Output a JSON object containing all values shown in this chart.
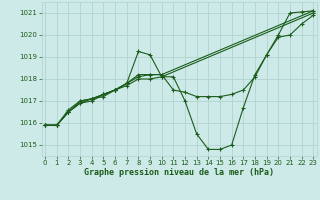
{
  "xlabel": "Graphe pression niveau de la mer (hPa)",
  "x_ticks": [
    0,
    1,
    2,
    3,
    4,
    5,
    6,
    7,
    8,
    9,
    10,
    11,
    12,
    13,
    14,
    15,
    16,
    17,
    18,
    19,
    20,
    21,
    22,
    23
  ],
  "ylim": [
    1014.5,
    1021.5
  ],
  "xlim": [
    -0.3,
    23.3
  ],
  "yticks": [
    1015,
    1016,
    1017,
    1018,
    1019,
    1020,
    1021
  ],
  "background_color": "#ceeae8",
  "grid_color": "#b0d4d0",
  "line_color": "#1a5c1a",
  "marker_color": "#1a5c1a",
  "series": [
    {
      "x": [
        0,
        1,
        2,
        3,
        4,
        5,
        6,
        7,
        8,
        9,
        10,
        11,
        12,
        13,
        14,
        15,
        16,
        17,
        18,
        19,
        20,
        21,
        22,
        23
      ],
      "y": [
        1015.9,
        1015.9,
        1016.5,
        1016.9,
        1017.0,
        1017.3,
        1017.5,
        1017.8,
        1019.25,
        1019.1,
        1018.1,
        1018.1,
        1017.0,
        1015.5,
        1014.8,
        1014.8,
        1015.0,
        1016.7,
        1018.2,
        1019.1,
        1020.0,
        1021.0,
        1021.05,
        1021.1
      ]
    },
    {
      "x": [
        0,
        1,
        2,
        3,
        4,
        5,
        6,
        7,
        8,
        9,
        10,
        11,
        12,
        13,
        14,
        15,
        16,
        17,
        18,
        19,
        20,
        21,
        22,
        23
      ],
      "y": [
        1015.9,
        1015.9,
        1016.5,
        1016.9,
        1017.1,
        1017.3,
        1017.5,
        1017.8,
        1018.2,
        1018.2,
        1018.2,
        1017.5,
        1017.4,
        1017.2,
        1017.2,
        1017.2,
        1017.3,
        1017.5,
        1018.1,
        1019.1,
        1019.9,
        1020.0,
        1020.5,
        1020.9
      ]
    },
    {
      "x": [
        0,
        1,
        2,
        3,
        4,
        5,
        6,
        7,
        8,
        9,
        10,
        23
      ],
      "y": [
        1015.9,
        1015.9,
        1016.5,
        1017.0,
        1017.1,
        1017.2,
        1017.5,
        1017.7,
        1018.0,
        1018.0,
        1018.1,
        1021.0
      ]
    },
    {
      "x": [
        0,
        1,
        2,
        3,
        4,
        5,
        6,
        7,
        8,
        9,
        10,
        23
      ],
      "y": [
        1015.9,
        1015.9,
        1016.6,
        1017.0,
        1017.1,
        1017.3,
        1017.5,
        1017.8,
        1018.1,
        1018.2,
        1018.2,
        1021.1
      ]
    }
  ]
}
